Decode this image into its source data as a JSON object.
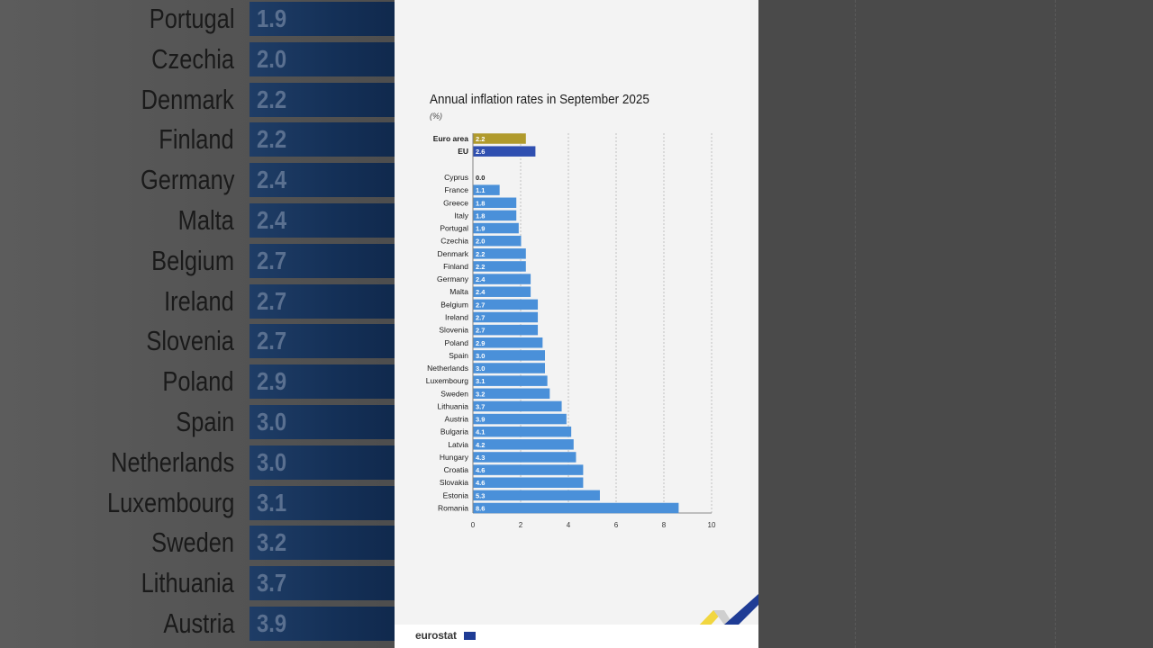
{
  "background": {
    "rows": [
      {
        "name": "Portugal",
        "value": "1.9"
      },
      {
        "name": "Czechia",
        "value": "2.0"
      },
      {
        "name": "Denmark",
        "value": "2.2"
      },
      {
        "name": "Finland",
        "value": "2.2"
      },
      {
        "name": "Germany",
        "value": "2.4"
      },
      {
        "name": "Malta",
        "value": "2.4"
      },
      {
        "name": "Belgium",
        "value": "2.7"
      },
      {
        "name": "Ireland",
        "value": "2.7"
      },
      {
        "name": "Slovenia",
        "value": "2.7"
      },
      {
        "name": "Poland",
        "value": "2.9"
      },
      {
        "name": "Spain",
        "value": "3.0"
      },
      {
        "name": "Netherlands",
        "value": "3.0"
      },
      {
        "name": "Luxembourg",
        "value": "3.1"
      },
      {
        "name": "Sweden",
        "value": "3.2"
      },
      {
        "name": "Lithuania",
        "value": "3.7"
      },
      {
        "name": "Austria",
        "value": "3.9"
      }
    ]
  },
  "footer": {
    "logo_text": "eurostat"
  },
  "colors": {
    "euro_area": "#b09a2c",
    "eu": "#2f4fb0",
    "country": "#4a90d9",
    "accent_yellow": "#f0d020",
    "accent_blue": "#1f3c95"
  },
  "chart_data": {
    "type": "bar",
    "orientation": "horizontal",
    "title": "Annual inflation rates in September 2025",
    "unit": "(%)",
    "aggregates": [
      {
        "label": "Euro area",
        "value": 2.2,
        "display": "2.2"
      },
      {
        "label": "EU",
        "value": 2.6,
        "display": "2.6"
      }
    ],
    "categories": [
      "Cyprus",
      "France",
      "Greece",
      "Italy",
      "Portugal",
      "Czechia",
      "Denmark",
      "Finland",
      "Germany",
      "Malta",
      "Belgium",
      "Ireland",
      "Slovenia",
      "Poland",
      "Spain",
      "Netherlands",
      "Luxembourg",
      "Sweden",
      "Lithuania",
      "Austria",
      "Bulgaria",
      "Latvia",
      "Hungary",
      "Croatia",
      "Slovakia",
      "Estonia",
      "Romania"
    ],
    "values": [
      0.0,
      1.1,
      1.8,
      1.8,
      1.9,
      2.0,
      2.2,
      2.2,
      2.4,
      2.4,
      2.7,
      2.7,
      2.7,
      2.9,
      3.0,
      3.0,
      3.1,
      3.2,
      3.7,
      3.9,
      4.1,
      4.2,
      4.3,
      4.6,
      4.6,
      5.3,
      8.6
    ],
    "value_labels": [
      "0.0",
      "1.1",
      "1.8",
      "1.8",
      "1.9",
      "2.0",
      "2.2",
      "2.2",
      "2.4",
      "2.4",
      "2.7",
      "2.7",
      "2.7",
      "2.9",
      "3.0",
      "3.0",
      "3.1",
      "3.2",
      "3.7",
      "3.9",
      "4.1",
      "4.2",
      "4.3",
      "4.6",
      "4.6",
      "5.3",
      "8.6"
    ],
    "xlim": [
      0,
      10
    ],
    "xticks": [
      "0",
      "2",
      "4",
      "6",
      "8",
      "10"
    ],
    "grid": true
  }
}
